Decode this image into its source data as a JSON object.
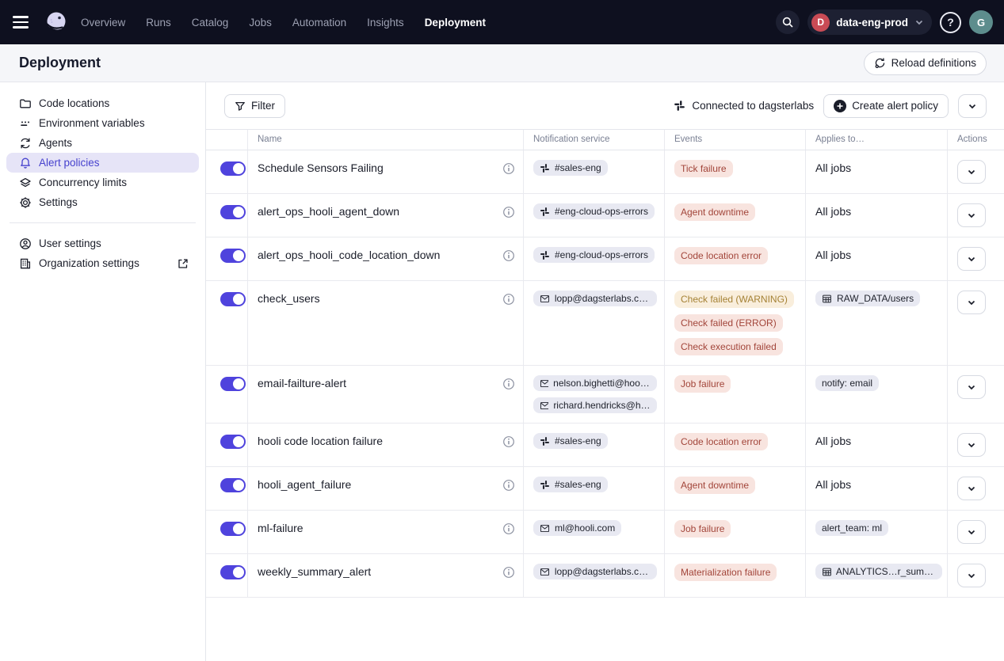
{
  "colors": {
    "accent": "#4F43DD",
    "nav_bg": "#0E101F",
    "error_badge_bg": "#F8E4DF",
    "error_badge_text": "#A2453A",
    "warning_badge_bg": "#F9EEDC",
    "warning_badge_text": "#A58235",
    "selected_nav_bg": "#E6E4F7",
    "selected_nav_text": "#4742CE"
  },
  "topnav": {
    "items": [
      {
        "label": "Overview",
        "active": false
      },
      {
        "label": "Runs",
        "active": false
      },
      {
        "label": "Catalog",
        "active": false
      },
      {
        "label": "Jobs",
        "active": false
      },
      {
        "label": "Automation",
        "active": false
      },
      {
        "label": "Insights",
        "active": false
      },
      {
        "label": "Deployment",
        "active": true
      }
    ],
    "deployment_switcher": {
      "initial": "D",
      "label": "data-eng-prod"
    },
    "help_glyph": "?",
    "avatar_initial": "G"
  },
  "header": {
    "title": "Deployment",
    "reload_button": "Reload definitions"
  },
  "sidebar": {
    "items": [
      {
        "icon": "folder-icon",
        "label": "Code locations",
        "active": false
      },
      {
        "icon": "env-vars-icon",
        "label": "Environment variables",
        "active": false
      },
      {
        "icon": "sync-icon",
        "label": "Agents",
        "active": false
      },
      {
        "icon": "bell-icon",
        "label": "Alert policies",
        "active": true
      },
      {
        "icon": "layers-icon",
        "label": "Concurrency limits",
        "active": false
      },
      {
        "icon": "gear-icon",
        "label": "Settings",
        "active": false
      }
    ],
    "footer_items": [
      {
        "icon": "user-icon",
        "label": "User settings",
        "external": false
      },
      {
        "icon": "building-icon",
        "label": "Organization settings",
        "external": true
      }
    ]
  },
  "toolbar": {
    "filter_label": "Filter",
    "connected_label": "Connected to dagsterlabs",
    "create_label": "Create alert policy"
  },
  "table": {
    "columns": [
      "Name",
      "Notification service",
      "Events",
      "Applies to…",
      "Actions"
    ],
    "rows": [
      {
        "enabled": true,
        "name": "Schedule Sensors Failing",
        "notifications": [
          {
            "type": "slack",
            "label": "#sales-eng"
          }
        ],
        "events": [
          {
            "label": "Tick failure",
            "severity": "error"
          }
        ],
        "applies_to": {
          "style": "text",
          "label": "All jobs"
        }
      },
      {
        "enabled": true,
        "name": "alert_ops_hooli_agent_down",
        "notifications": [
          {
            "type": "slack",
            "label": "#eng-cloud-ops-errors"
          }
        ],
        "events": [
          {
            "label": "Agent downtime",
            "severity": "error"
          }
        ],
        "applies_to": {
          "style": "text",
          "label": "All jobs"
        }
      },
      {
        "enabled": true,
        "name": "alert_ops_hooli_code_location_down",
        "notifications": [
          {
            "type": "slack",
            "label": "#eng-cloud-ops-errors"
          }
        ],
        "events": [
          {
            "label": "Code location error",
            "severity": "error"
          }
        ],
        "applies_to": {
          "style": "text",
          "label": "All jobs"
        }
      },
      {
        "enabled": true,
        "name": "check_users",
        "notifications": [
          {
            "type": "email",
            "label": "lopp@dagsterlabs.com"
          }
        ],
        "events": [
          {
            "label": "Check failed (WARNING)",
            "severity": "warning"
          },
          {
            "label": "Check failed (ERROR)",
            "severity": "error"
          },
          {
            "label": "Check execution failed",
            "severity": "error"
          }
        ],
        "applies_to": {
          "style": "asset-pill",
          "label": "RAW_DATA/users"
        }
      },
      {
        "enabled": true,
        "name": "email-failture-alert",
        "notifications": [
          {
            "type": "email",
            "label": "nelson.bighetti@hooli.co…"
          },
          {
            "type": "email",
            "label": "richard.hendricks@hooli…"
          }
        ],
        "events": [
          {
            "label": "Job failure",
            "severity": "error"
          }
        ],
        "applies_to": {
          "style": "pill",
          "label": "notify: email"
        }
      },
      {
        "enabled": true,
        "name": "hooli code location failure",
        "notifications": [
          {
            "type": "slack",
            "label": "#sales-eng"
          }
        ],
        "events": [
          {
            "label": "Code location error",
            "severity": "error"
          }
        ],
        "applies_to": {
          "style": "text",
          "label": "All jobs"
        }
      },
      {
        "enabled": true,
        "name": "hooli_agent_failure",
        "notifications": [
          {
            "type": "slack",
            "label": "#sales-eng"
          }
        ],
        "events": [
          {
            "label": "Agent downtime",
            "severity": "error"
          }
        ],
        "applies_to": {
          "style": "text",
          "label": "All jobs"
        }
      },
      {
        "enabled": true,
        "name": "ml-failure",
        "notifications": [
          {
            "type": "email",
            "label": "ml@hooli.com"
          }
        ],
        "events": [
          {
            "label": "Job failure",
            "severity": "error"
          }
        ],
        "applies_to": {
          "style": "pill",
          "label": "alert_team: ml"
        }
      },
      {
        "enabled": true,
        "name": "weekly_summary_alert",
        "notifications": [
          {
            "type": "email",
            "label": "lopp@dagsterlabs.com"
          }
        ],
        "events": [
          {
            "label": "Materialization failure",
            "severity": "error"
          }
        ],
        "applies_to": {
          "style": "asset-pill",
          "label": "ANALYTICS…r_summary"
        }
      }
    ]
  }
}
